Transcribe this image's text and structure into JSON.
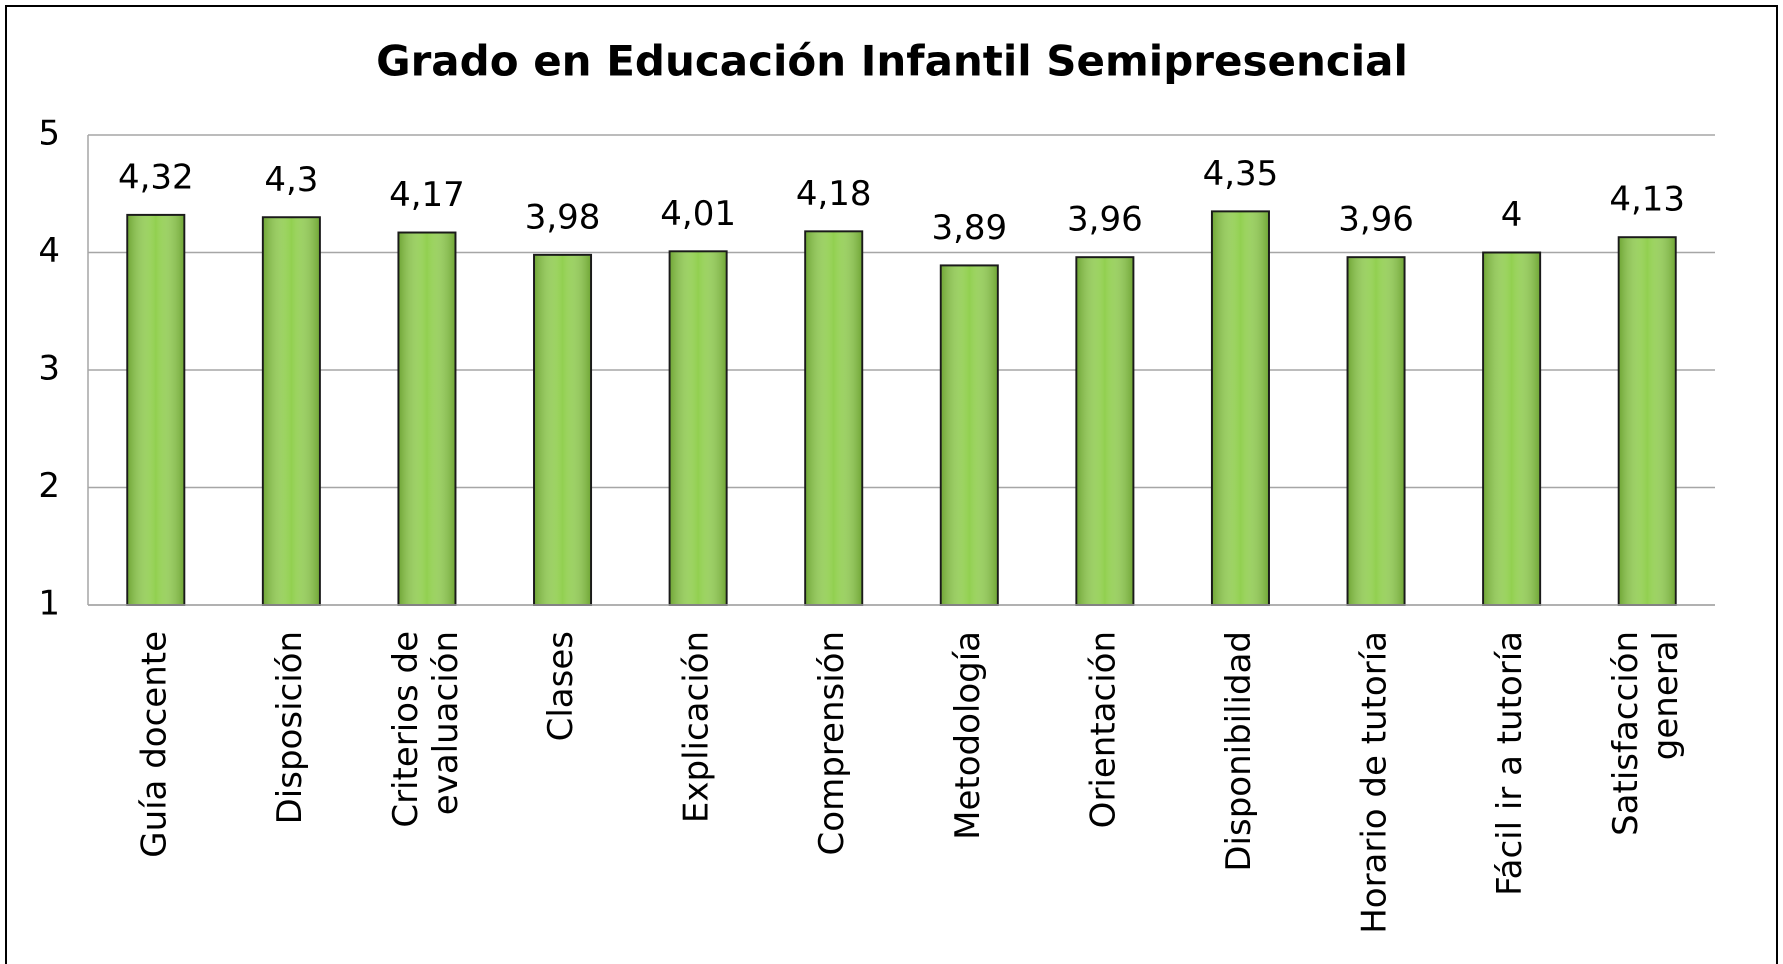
{
  "chart_data": {
    "type": "bar",
    "title": "Grado en Educación Infantil Semipresencial",
    "categories": [
      "Guía docente",
      "Disposición",
      "Criterios de evaluación",
      "Clases",
      "Explicación",
      "Comprensión",
      "Metodología",
      "Orientación",
      "Disponibilidad",
      "Horario de tutoría",
      "Fácil ir a tutoría",
      "Satisfacción general"
    ],
    "values": [
      4.32,
      4.3,
      4.17,
      3.98,
      4.01,
      4.18,
      3.89,
      3.96,
      4.35,
      3.96,
      4,
      4.13
    ],
    "value_labels": [
      "4,32",
      "4,3",
      "4,17",
      "3,98",
      "4,01",
      "4,18",
      "3,89",
      "3,96",
      "4,35",
      "3,96",
      "4",
      "4,13"
    ],
    "color": "#92d050",
    "ylim": [
      1,
      5
    ],
    "yticks": [
      1,
      2,
      3,
      4,
      5
    ],
    "grid": true
  }
}
